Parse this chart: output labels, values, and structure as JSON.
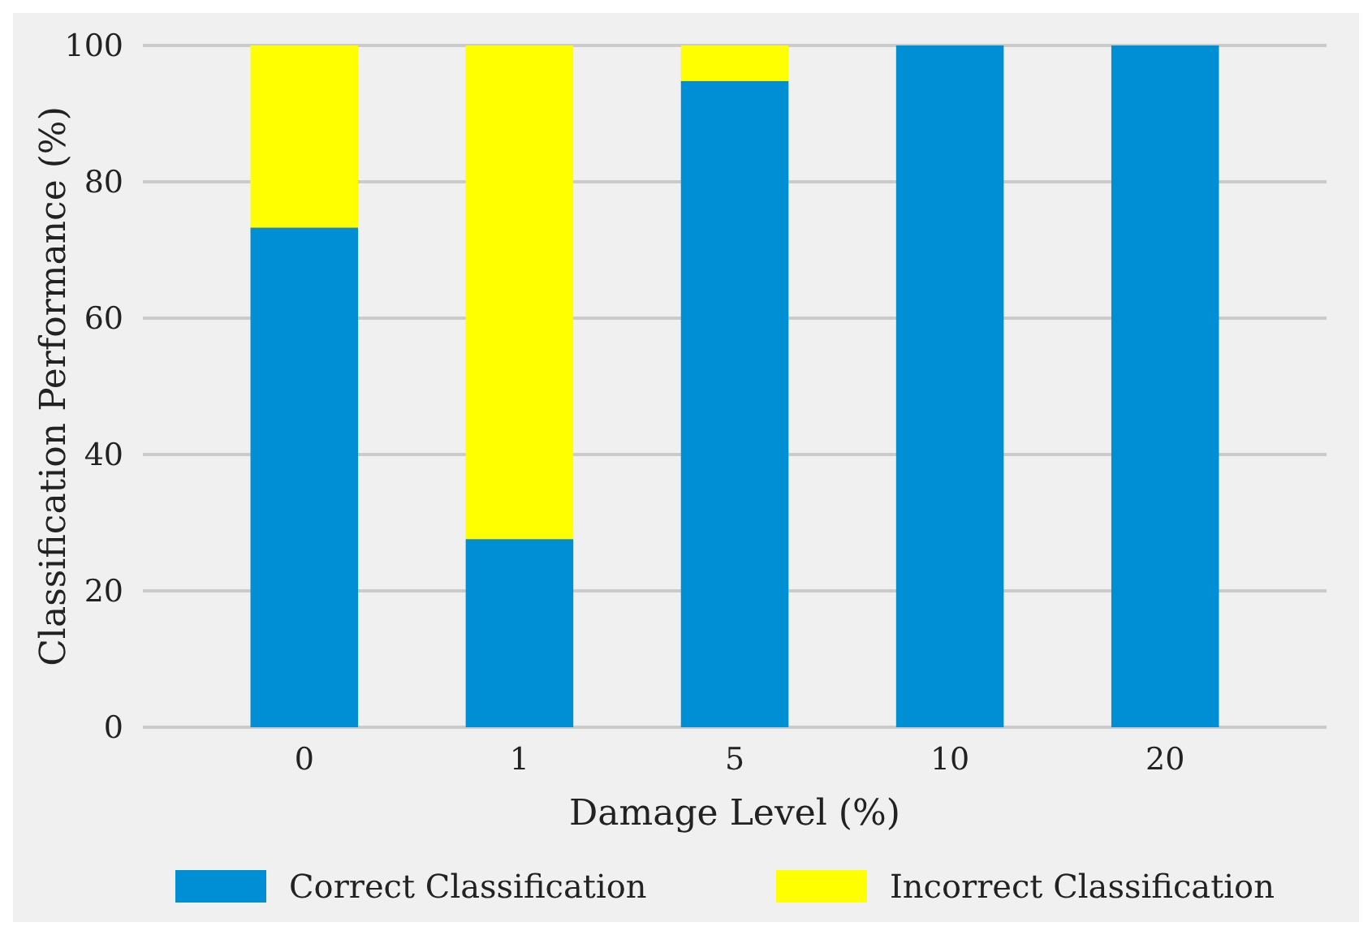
{
  "chart_data": {
    "type": "bar",
    "stacked": true,
    "xlabel": "Damage Level (%)",
    "ylabel": "Classification Performance (%)",
    "categories": [
      "0",
      "1",
      "5",
      "10",
      "20"
    ],
    "series": [
      {
        "name": "Correct Classification",
        "color": "#008fd5",
        "values": [
          73.3,
          27.6,
          94.8,
          100,
          100
        ]
      },
      {
        "name": "Incorrect Classification",
        "color": "#ffff00",
        "values": [
          26.7,
          72.4,
          5.2,
          0,
          0
        ]
      }
    ],
    "ylim": [
      0,
      100
    ],
    "yticks": [
      0,
      20,
      40,
      60,
      80,
      100
    ],
    "grid": "y",
    "legend": "bottom"
  }
}
